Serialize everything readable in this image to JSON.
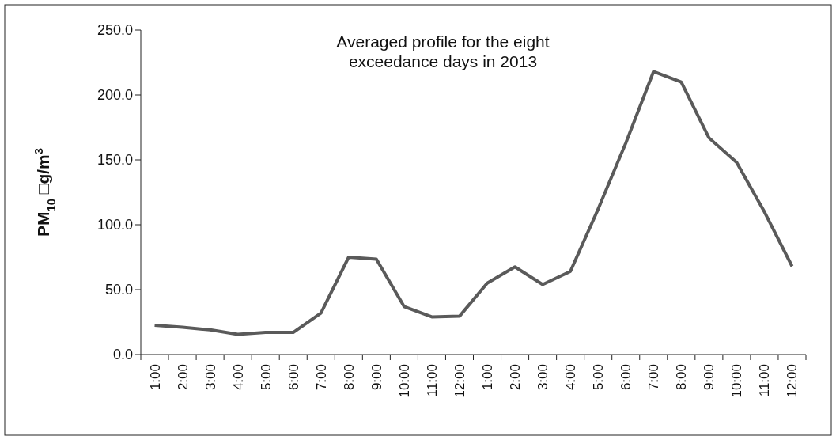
{
  "chart_data": {
    "type": "line",
    "title": "Averaged profile for the eight exceedance days in 2013",
    "ylabel": "PM$_{10}$ □g/m$^{3}$",
    "categories": [
      "1:00",
      "2:00",
      "3:00",
      "4:00",
      "5:00",
      "6:00",
      "7:00",
      "8:00",
      "9:00",
      "10:00",
      "11:00",
      "12:00",
      "1:00",
      "2:00",
      "3:00",
      "4:00",
      "5:00",
      "6:00",
      "7:00",
      "8:00",
      "9:00",
      "10:00",
      "11:00",
      "12:00"
    ],
    "series": [
      {
        "color": "#5a5a5a",
        "values": [
          22.5,
          21,
          19,
          15.5,
          17,
          17,
          32,
          75,
          73.5,
          37,
          29,
          29.5,
          55,
          67.5,
          54,
          64,
          112,
          163,
          218,
          210,
          167,
          148,
          110,
          68
        ]
      }
    ],
    "ylim": [
      0,
      250
    ],
    "yticks": [
      {
        "value": 0,
        "label": "0.0"
      },
      {
        "value": 50,
        "label": "50.0"
      },
      {
        "value": 100,
        "label": "100.0"
      },
      {
        "value": 150,
        "label": "150.0"
      },
      {
        "value": 200,
        "label": "200.0"
      },
      {
        "value": 250,
        "label": "250.0"
      }
    ],
    "marker": "none"
  }
}
